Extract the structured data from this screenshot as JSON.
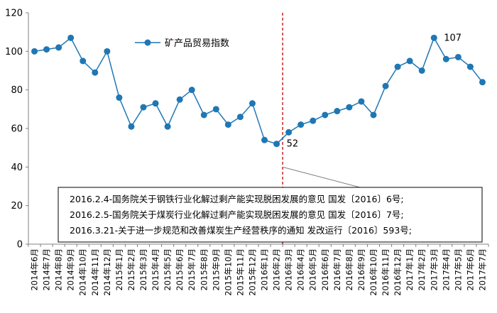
{
  "chart_data": {
    "type": "line",
    "title": "",
    "xlabel": "",
    "ylabel": "",
    "ylim": [
      0,
      120
    ],
    "yticks": [
      0,
      20,
      40,
      60,
      80,
      100,
      120
    ],
    "grid": false,
    "legend_position": "top-left",
    "categories": [
      "2014年6月",
      "2014年7月",
      "2014年8月",
      "2014年9月",
      "2014年10月",
      "2014年11月",
      "2014年12月",
      "2015年1月",
      "2015年2月",
      "2015年3月",
      "2015年4月",
      "2015年5月",
      "2015年6月",
      "2015年7月",
      "2015年8月",
      "2015年9月",
      "2015年10月",
      "2015年11月",
      "2015年12月",
      "2016年1月",
      "2016年2月",
      "2016年3月",
      "2016年4月",
      "2016年5月",
      "2016年6月",
      "2016年7月",
      "2016年8月",
      "2016年9月",
      "2016年10月",
      "2016年11月",
      "2016年12月",
      "2017年1月",
      "2017年2月",
      "2017年3月",
      "2017年4月",
      "2017年5月",
      "2017年6月",
      "2017年7月"
    ],
    "series": [
      {
        "name": "矿产品贸易指数",
        "color": "#1f77b4",
        "values": [
          100,
          101,
          102,
          107,
          95,
          89,
          100,
          76,
          61,
          71,
          73,
          61,
          75,
          80,
          67,
          70,
          62,
          66,
          73,
          54,
          52,
          58,
          62,
          64,
          67,
          69,
          71,
          74,
          67,
          82,
          92,
          95,
          90,
          107,
          96,
          97,
          92,
          84
        ]
      }
    ],
    "data_labels": [
      {
        "index": 20,
        "text": "52"
      },
      {
        "index": 33,
        "text": "107"
      }
    ],
    "marker_line": {
      "after_index": 20,
      "color": "#c00000",
      "style": "dashed"
    },
    "annotation": {
      "lines": [
        "2016.2.4-国务院关于钢铁行业化解过剩产能实现脱困发展的意见 国发〔2016〕6号;",
        "2016.2.5-国务院关于煤炭行业化解过剩产能实现脱困发展的意见 国发〔2016〕7号;",
        "2016.3.21-关于进一步规范和改善煤炭生产经营秩序的通知 发改运行〔2016〕593号;"
      ],
      "pointer_target_value": 40
    }
  }
}
